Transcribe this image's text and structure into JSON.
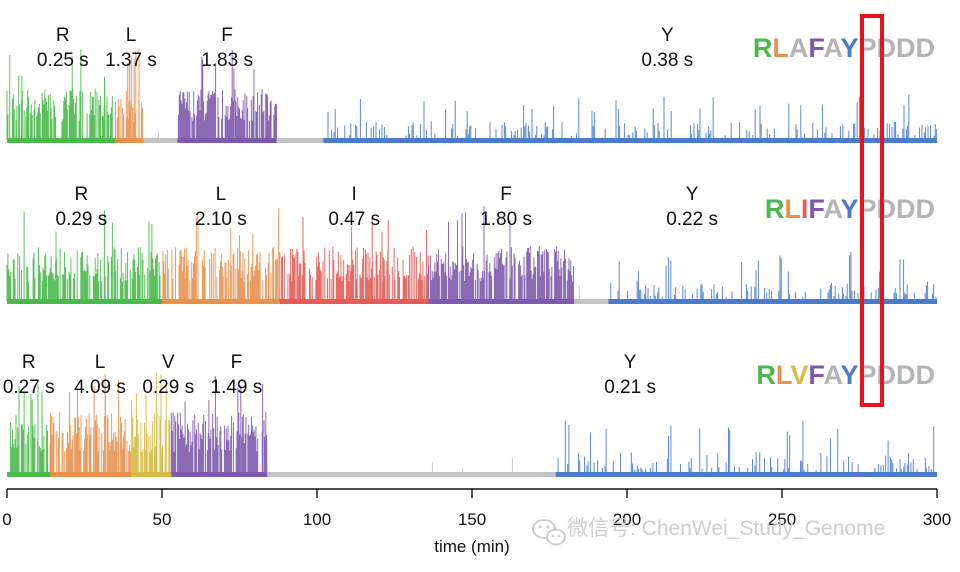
{
  "chart_data": {
    "type": "line",
    "xlabel": "time (min)",
    "xlim": [
      0,
      300
    ],
    "xticks": [
      0,
      50,
      100,
      150,
      200,
      250,
      300
    ],
    "highlight_color": "#e8141c",
    "colors": {
      "R": "#4bb94c",
      "L": "#e99150",
      "F": "#7e5aad",
      "I": "#e35c57",
      "V": "#d6bc44",
      "Y": "#4a7ccb",
      "gap": "#c3c3c3",
      "tail": "#b4b4b4"
    },
    "traces": [
      {
        "sequence": [
          "R",
          "L",
          "A",
          "F",
          "A",
          "Y",
          "P",
          "D",
          "D",
          "D"
        ],
        "sequence_colors": [
          "#4bb94c",
          "#e99150",
          "#b4b4b4",
          "#7e5aad",
          "#b4b4b4",
          "#4a7ccb",
          "#b4b4b4",
          "#b4b4b4",
          "#b4b4b4",
          "#b4b4b4"
        ],
        "segments": [
          {
            "residue": "R",
            "start": 0,
            "end": 35,
            "label": "R",
            "dwell": "0.25 s",
            "label_x": 18
          },
          {
            "residue": "L",
            "start": 35,
            "end": 44,
            "label": "L",
            "dwell": "1.37 s",
            "label_x": 40
          },
          {
            "residue": "gap",
            "start": 44,
            "end": 55
          },
          {
            "residue": "F",
            "start": 55,
            "end": 87,
            "label": "F",
            "dwell": "1.83 s",
            "label_x": 71
          },
          {
            "residue": "gap",
            "start": 87,
            "end": 102
          },
          {
            "residue": "Y",
            "start": 102,
            "end": 300,
            "label": "Y",
            "dwell": "0.38 s",
            "label_x": 213
          }
        ]
      },
      {
        "sequence": [
          "R",
          "L",
          "I",
          "F",
          "A",
          "Y",
          "P",
          "D",
          "D",
          "D"
        ],
        "sequence_colors": [
          "#4bb94c",
          "#e99150",
          "#e35c57",
          "#7e5aad",
          "#b4b4b4",
          "#4a7ccb",
          "#b4b4b4",
          "#b4b4b4",
          "#b4b4b4",
          "#b4b4b4"
        ],
        "segments": [
          {
            "residue": "R",
            "start": 0,
            "end": 50,
            "label": "R",
            "dwell": "0.29 s",
            "label_x": 24
          },
          {
            "residue": "L",
            "start": 50,
            "end": 88,
            "label": "L",
            "dwell": "2.10 s",
            "label_x": 69
          },
          {
            "residue": "I",
            "start": 88,
            "end": 136,
            "label": "I",
            "dwell": "0.47 s",
            "label_x": 112
          },
          {
            "residue": "F",
            "start": 136,
            "end": 183,
            "label": "F",
            "dwell": "1.80 s",
            "label_x": 161
          },
          {
            "residue": "gap",
            "start": 183,
            "end": 194
          },
          {
            "residue": "Y",
            "start": 194,
            "end": 300,
            "label": "Y",
            "dwell": "0.22 s",
            "label_x": 221
          }
        ]
      },
      {
        "sequence": [
          "R",
          "L",
          "V",
          "F",
          "A",
          "Y",
          "P",
          "D",
          "D",
          "D"
        ],
        "sequence_colors": [
          "#4bb94c",
          "#e99150",
          "#d6bc44",
          "#7e5aad",
          "#b4b4b4",
          "#4a7ccb",
          "#b4b4b4",
          "#b4b4b4",
          "#b4b4b4",
          "#b4b4b4"
        ],
        "segments": [
          {
            "residue": "R",
            "start": 0,
            "end": 14,
            "label": "R",
            "dwell": "0.27 s",
            "label_x": 7
          },
          {
            "residue": "L",
            "start": 14,
            "end": 40,
            "label": "L",
            "dwell": "4.09 s",
            "label_x": 30
          },
          {
            "residue": "V",
            "start": 40,
            "end": 53,
            "label": "V",
            "dwell": "0.29 s",
            "label_x": 52
          },
          {
            "residue": "F",
            "start": 53,
            "end": 84,
            "label": "F",
            "dwell": "1.49 s",
            "label_x": 74
          },
          {
            "residue": "gap",
            "start": 84,
            "end": 177
          },
          {
            "residue": "Y",
            "start": 177,
            "end": 300,
            "label": "Y",
            "dwell": "0.21 s",
            "label_x": 201
          }
        ]
      }
    ]
  },
  "watermark": {
    "icon": "wechat-icon",
    "text": "微信号: ChenWei_Study_Genome"
  }
}
